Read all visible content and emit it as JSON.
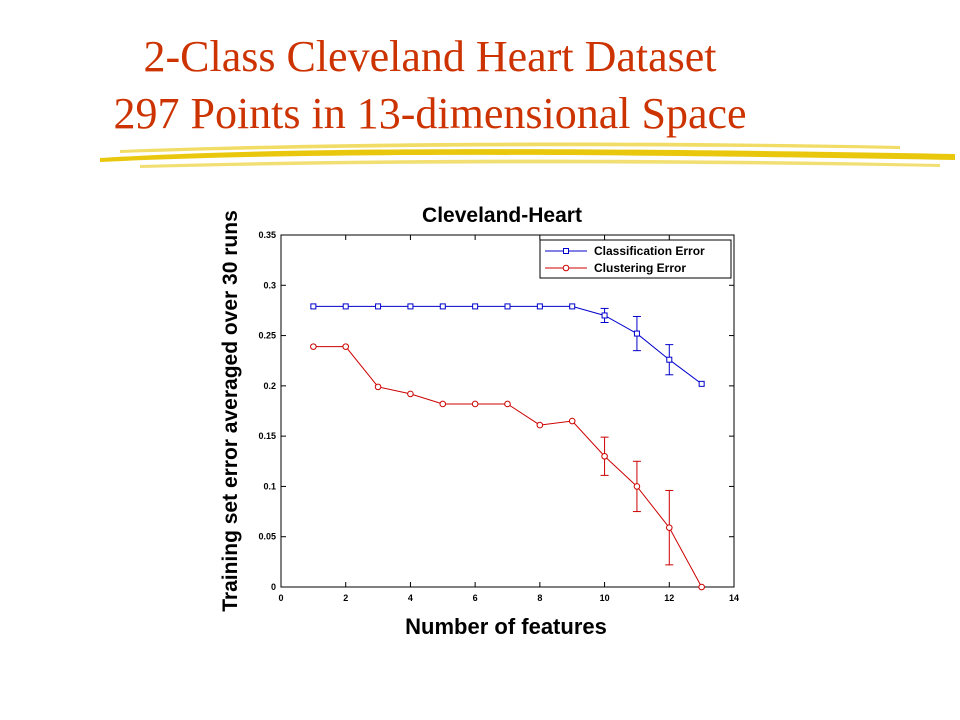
{
  "slide": {
    "title_line1": "2-Class Cleveland Heart Dataset",
    "title_line2": "297 Points in 13-dimensional Space",
    "title_color": "#cc3300",
    "underline_color": "#e8c400"
  },
  "chart_data": {
    "type": "line",
    "title": "Cleveland-Heart",
    "xlabel": "Number of features",
    "ylabel": "Training set error averaged over 30 runs",
    "xlim": [
      0,
      14
    ],
    "ylim": [
      0,
      0.35
    ],
    "xticks": [
      0,
      2,
      4,
      6,
      8,
      10,
      12,
      14
    ],
    "xtick_labels": [
      "0",
      "2",
      "4",
      "6",
      "8",
      "10",
      "12",
      "14"
    ],
    "yticks": [
      0,
      0.05,
      0.1,
      0.15,
      0.2,
      0.25,
      0.3,
      0.35
    ],
    "ytick_labels": [
      "0",
      "0.05",
      "0.1",
      "0.15",
      "0.2",
      "0.25",
      "0.3",
      "0.35"
    ],
    "grid": false,
    "legend_position": "top-right",
    "series": [
      {
        "name": "Classification Error",
        "color": "#0000cc",
        "marker": "square",
        "x": [
          1,
          2,
          3,
          4,
          5,
          6,
          7,
          8,
          9,
          10,
          11,
          12,
          13
        ],
        "y": [
          0.279,
          0.279,
          0.279,
          0.279,
          0.279,
          0.279,
          0.279,
          0.279,
          0.279,
          0.27,
          0.252,
          0.226,
          0.202
        ],
        "error": [
          0,
          0,
          0,
          0,
          0,
          0,
          0,
          0,
          0,
          0.007,
          0.017,
          0.015,
          0
        ]
      },
      {
        "name": "Clustering Error",
        "color": "#cc0000",
        "marker": "circle",
        "x": [
          1,
          2,
          3,
          4,
          5,
          6,
          7,
          8,
          9,
          10,
          11,
          12,
          13
        ],
        "y": [
          0.239,
          0.239,
          0.199,
          0.192,
          0.182,
          0.182,
          0.182,
          0.161,
          0.165,
          0.13,
          0.1,
          0.059,
          0.0
        ],
        "error": [
          0,
          0,
          0,
          0,
          0,
          0,
          0,
          0,
          0,
          0.019,
          0.025,
          0.037,
          0
        ]
      }
    ]
  }
}
